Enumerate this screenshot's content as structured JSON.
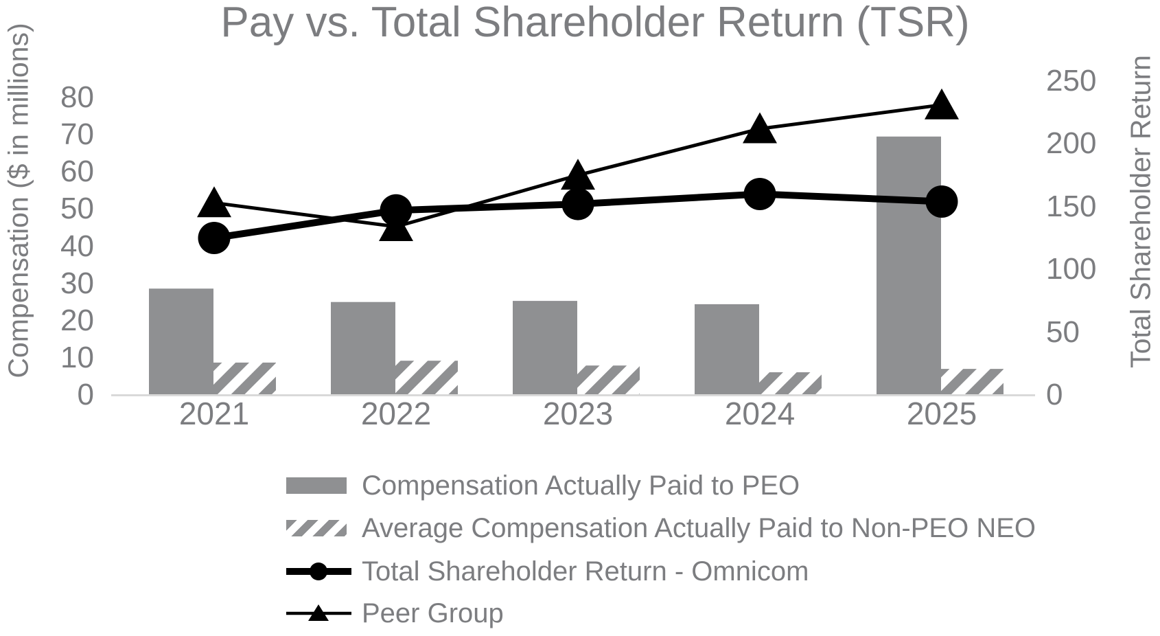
{
  "title": "Pay vs. Total Shareholder Return (TSR)",
  "left_axis": {
    "label": "Compensation ($ in millions)",
    "ticks": [
      0,
      10,
      20,
      30,
      40,
      50,
      60,
      70,
      80
    ],
    "min": 0,
    "max": 80
  },
  "right_axis": {
    "label": "Total Shareholder Return",
    "ticks": [
      0,
      50,
      100,
      150,
      200,
      250
    ],
    "min": 0,
    "max": 250
  },
  "x_axis": {
    "categories": [
      "2021",
      "2022",
      "2023",
      "2024",
      "2025"
    ]
  },
  "legend": {
    "items": [
      {
        "label": "Compensation Actually Paid to PEO",
        "marker": "solid-gray-bar"
      },
      {
        "label": "Average Compensation Actually Paid to Non-PEO NEO",
        "marker": "hatched-gray-bar"
      },
      {
        "label": "Total Shareholder Return - Omnicom",
        "marker": "thick-black-line-with-circle"
      },
      {
        "label": "Peer Group",
        "marker": "thin-black-line-with-triangle"
      }
    ]
  },
  "colors": {
    "bar_gray": "#8F9092",
    "text_gray": "#7C7D80",
    "axis_line_gray": "#D9D9D9",
    "series_black": "#000000",
    "background": "#FFFFFF"
  },
  "chart_data": {
    "type": "combo-bar-line",
    "title": "Pay vs. Total Shareholder Return (TSR)",
    "categories": [
      "2021",
      "2022",
      "2023",
      "2024",
      "2025"
    ],
    "series": [
      {
        "name": "Compensation Actually Paid to PEO",
        "type": "bar",
        "style": "solid-gray",
        "axis": "left",
        "values": [
          28.6,
          25.0,
          25.3,
          24.4,
          69.5
        ]
      },
      {
        "name": "Average Compensation Actually Paid to Non-PEO NEO",
        "type": "bar",
        "style": "diagonal-hatch",
        "axis": "left",
        "values": [
          8.7,
          9.2,
          7.9,
          6.1,
          7.0
        ]
      },
      {
        "name": "Total Shareholder Return - Omnicom",
        "type": "line",
        "marker": "circle",
        "axis": "right",
        "values": [
          125,
          147,
          152,
          160,
          154
        ]
      },
      {
        "name": "Peer Group",
        "type": "line",
        "marker": "triangle",
        "axis": "right",
        "values": [
          153,
          134,
          175,
          212,
          231
        ]
      }
    ],
    "left_ylabel": "Compensation ($ in millions)",
    "right_ylabel": "Total Shareholder Return",
    "left_ylim": [
      0,
      80
    ],
    "right_ylim": [
      0,
      250
    ],
    "grid": false,
    "legend_position": "bottom-left"
  }
}
